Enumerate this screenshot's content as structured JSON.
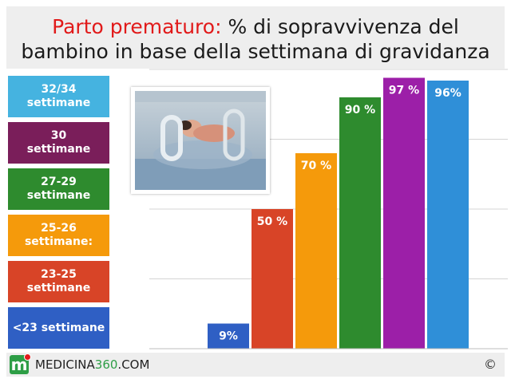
{
  "title": {
    "highlight": "Parto prematuro:",
    "line1_rest": " % di sopravvivenza del",
    "line2": "bambino in base della settimana di gravidanza"
  },
  "legend": [
    {
      "line1": "32/34",
      "line2": "settimane",
      "color": "#45b3e0"
    },
    {
      "line1": "30",
      "line2": "settimane",
      "color": "#7a1e5a"
    },
    {
      "line1": "27-29",
      "line2": "settimane",
      "color": "#2e8b2e"
    },
    {
      "line1": "25-26",
      "line2": "settimane:",
      "color": "#f59a0b"
    },
    {
      "line1": "23-25",
      "line2": "settimane",
      "color": "#d84427"
    },
    {
      "line1": "<23 settimane",
      "line2": "",
      "color": "#2f5fc4"
    }
  ],
  "chart_data": {
    "type": "bar",
    "categories": [
      "<23 settimane",
      "23-25 settimane",
      "25-26 settimane:",
      "27-29 settimane",
      "30 settimane",
      "32/34 settimane"
    ],
    "values": [
      9,
      50,
      70,
      90,
      97,
      96
    ],
    "labels": [
      "9%",
      "50 %",
      "70 %",
      "90 %",
      "97 %",
      "96%"
    ],
    "colors": [
      "#2f5fc4",
      "#d84427",
      "#f59a0b",
      "#2e8b2e",
      "#9c1fa8",
      "#2f8fd8"
    ],
    "ylim": [
      0,
      100
    ],
    "grid": true,
    "legend_position": "left"
  },
  "footer": {
    "logo_letter": "m",
    "brand_main": "MEDICINA",
    "brand_accent": "360",
    "brand_suffix": ".COM",
    "copyright": "©"
  }
}
